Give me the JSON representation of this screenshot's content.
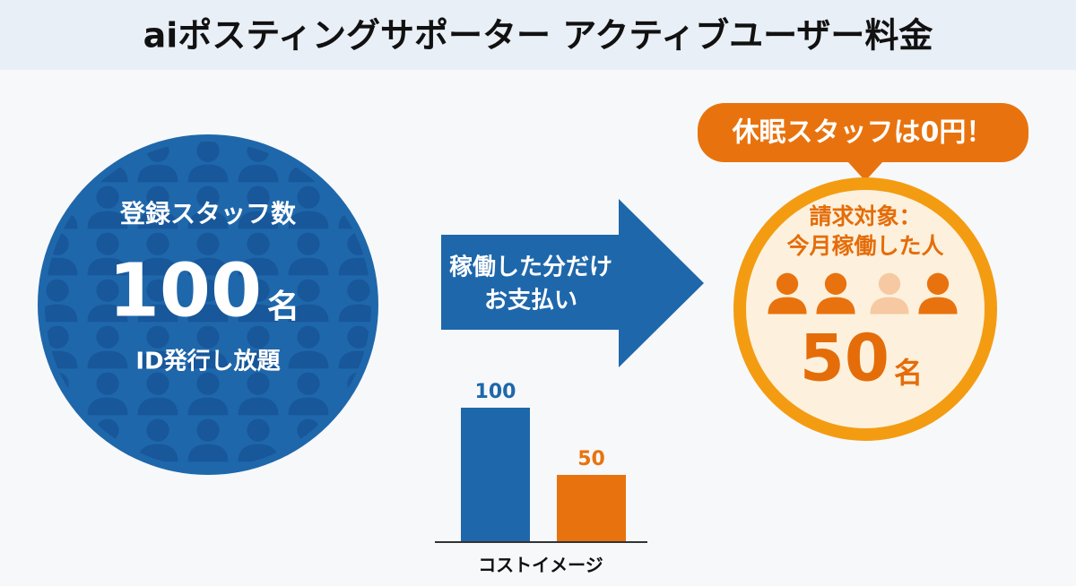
{
  "header": {
    "title": "aiポスティングサポーター アクティブユーザー料金"
  },
  "registered": {
    "label": "登録スタッフ数",
    "count": 100,
    "unit": "名",
    "note": "ID発行し放題"
  },
  "arrow": {
    "lines": [
      "稼働した分だけ",
      "お支払い"
    ]
  },
  "callout": {
    "text": "休眠スタッフは0円！"
  },
  "billed": {
    "label_lines": [
      "請求対象：",
      "今月稼働した人"
    ],
    "count": 50,
    "unit": "名"
  },
  "cost_chart": {
    "type": "bar",
    "values": [
      100,
      50
    ],
    "colors": [
      "#1f67ab",
      "#e8730e"
    ],
    "label": "コストイメージ"
  }
}
